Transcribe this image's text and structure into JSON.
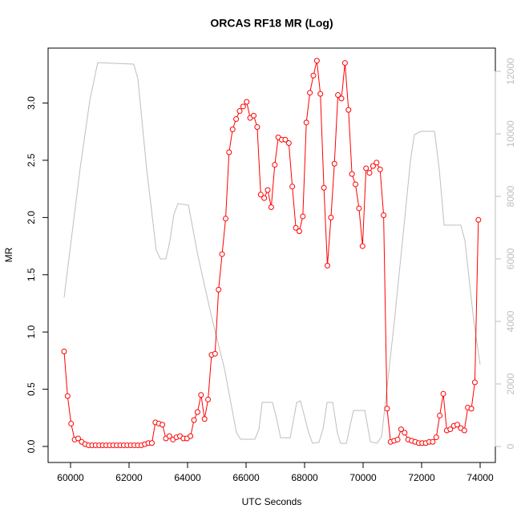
{
  "chart_data": {
    "type": "line",
    "title": "ORCAS RF18 MR (Log)",
    "x_label": "UTC Seconds",
    "y_label": "MR",
    "xlim": [
      59233,
      74520
    ],
    "xticks": [
      60000,
      62000,
      64000,
      66000,
      68000,
      70000,
      72000,
      74000
    ],
    "ylim": [
      -0.14,
      3.48
    ],
    "yticks": [
      {
        "value": 0,
        "label": "0.0"
      },
      0.5,
      {
        "value": 1,
        "label": "1.0"
      },
      1.5,
      {
        "value": 2,
        "label": "2.0"
      },
      2.5,
      {
        "value": 3,
        "label": "3.0"
      }
    ],
    "y2lim": [
      -513,
      12744
    ],
    "y2ticks": [
      0,
      2000,
      4000,
      6000,
      8000,
      10000,
      12000
    ],
    "series": [
      {
        "color": "#ff0000",
        "markers": true,
        "x": [
          59780,
          59900,
          60020,
          60140,
          60260,
          60380,
          60500,
          60620,
          60740,
          60860,
          60980,
          61100,
          61220,
          61340,
          61460,
          61580,
          61700,
          61820,
          61940,
          62060,
          62180,
          62300,
          62420,
          62540,
          62660,
          62780,
          62900,
          63020,
          63140,
          63260,
          63380,
          63500,
          63620,
          63740,
          63860,
          63980,
          64100,
          64220,
          64340,
          64460,
          64580,
          64700,
          64820,
          64940,
          65060,
          65180,
          65300,
          65420,
          65540,
          65660,
          65780,
          65900,
          66020,
          66140,
          66260,
          66380,
          66500,
          66620,
          66740,
          66860,
          66980,
          67100,
          67220,
          67340,
          67460,
          67580,
          67700,
          67820,
          67940,
          68060,
          68180,
          68300,
          68420,
          68540,
          68660,
          68780,
          68900,
          69020,
          69140,
          69260,
          69380,
          69500,
          69620,
          69740,
          69860,
          69980,
          70100,
          70220,
          70340,
          70460,
          70580,
          70700,
          70820,
          70940,
          71060,
          71180,
          71300,
          71420,
          71540,
          71660,
          71780,
          71900,
          72020,
          72140,
          72260,
          72380,
          72500,
          72620,
          72740,
          72860,
          72980,
          73100,
          73220,
          73340,
          73460,
          73580,
          73700,
          73820,
          73940
        ],
        "values": [
          0.83,
          0.44,
          0.2,
          0.06,
          0.07,
          0.04,
          0.02,
          0.01,
          0.01,
          0.01,
          0.01,
          0.01,
          0.01,
          0.01,
          0.01,
          0.01,
          0.01,
          0.01,
          0.01,
          0.01,
          0.01,
          0.01,
          0.01,
          0.02,
          0.03,
          0.03,
          0.21,
          0.2,
          0.19,
          0.07,
          0.09,
          0.06,
          0.08,
          0.09,
          0.07,
          0.07,
          0.09,
          0.23,
          0.3,
          0.45,
          0.24,
          0.41,
          0.8,
          0.81,
          1.37,
          1.68,
          1.99,
          2.57,
          2.77,
          2.86,
          2.93,
          2.97,
          3.01,
          2.87,
          2.89,
          2.79,
          2.2,
          2.17,
          2.24,
          2.09,
          2.46,
          2.7,
          2.68,
          2.68,
          2.65,
          2.27,
          1.91,
          1.88,
          2.01,
          2.83,
          3.09,
          3.24,
          3.37,
          3.08,
          2.26,
          1.58,
          2.0,
          2.47,
          3.07,
          3.04,
          3.35,
          2.94,
          2.38,
          2.29,
          2.08,
          1.75,
          2.43,
          2.39,
          2.45,
          2.48,
          2.42,
          2.02,
          0.33,
          0.04,
          0.05,
          0.06,
          0.15,
          0.12,
          0.06,
          0.05,
          0.04,
          0.03,
          0.03,
          0.03,
          0.04,
          0.04,
          0.08,
          0.27,
          0.46,
          0.14,
          0.15,
          0.18,
          0.19,
          0.16,
          0.14,
          0.34,
          0.33,
          0.56,
          1.98
        ]
      },
      {
        "color": "#bebebe",
        "axis": "y2",
        "markers": false,
        "x": [
          59780,
          60330,
          60660,
          60930,
          62160,
          62300,
          62600,
          62930,
          63070,
          63260,
          63400,
          63530,
          63670,
          64030,
          64360,
          64850,
          65260,
          65670,
          65810,
          66300,
          66440,
          66550,
          66900,
          67040,
          67180,
          67510,
          67730,
          67860,
          68140,
          68270,
          68490,
          68630,
          68770,
          68960,
          69120,
          69230,
          69430,
          69560,
          69670,
          70060,
          70250,
          70470,
          70630,
          70800,
          71070,
          71430,
          71620,
          71750,
          71970,
          72440,
          72600,
          72770,
          73340,
          73480,
          73780,
          74000
        ],
        "values": [
          4770,
          8900,
          11080,
          12280,
          12230,
          11770,
          8900,
          6280,
          6000,
          6000,
          6590,
          7410,
          7770,
          7720,
          6080,
          4030,
          2490,
          440,
          230,
          230,
          560,
          1410,
          1410,
          900,
          280,
          280,
          1410,
          1460,
          440,
          100,
          130,
          560,
          1410,
          1410,
          440,
          100,
          100,
          690,
          1150,
          1150,
          150,
          100,
          310,
          1720,
          4030,
          7360,
          9150,
          9970,
          10080,
          10080,
          8900,
          7080,
          7080,
          6590,
          4030,
          2620
        ]
      }
    ]
  }
}
